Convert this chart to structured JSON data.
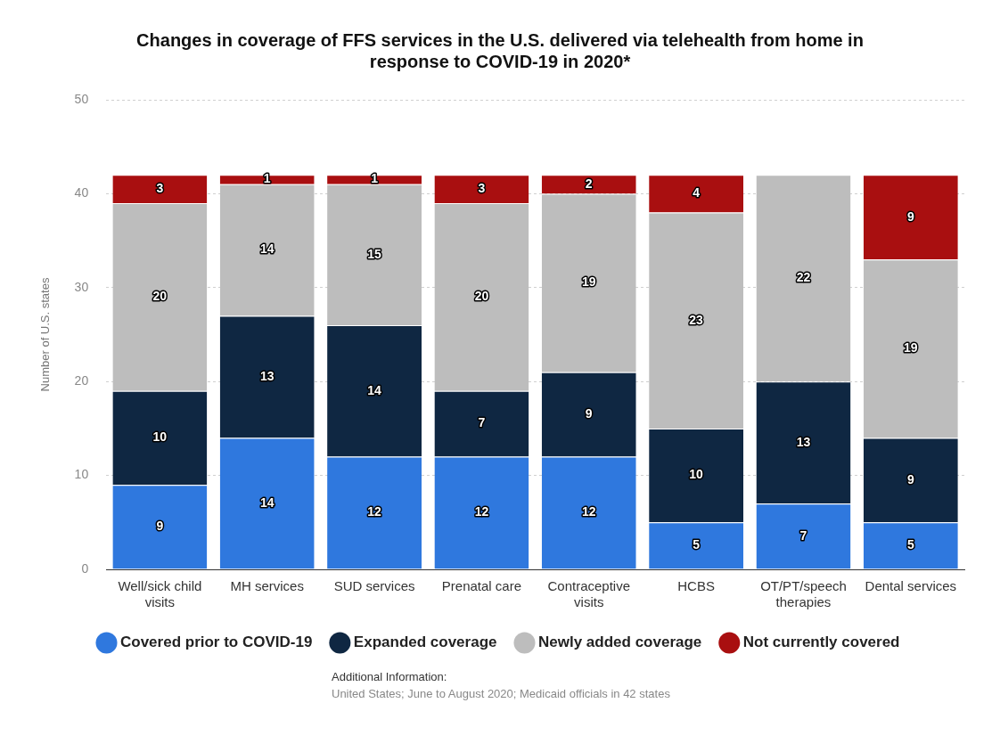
{
  "chart_data": {
    "type": "bar",
    "title": "Changes in coverage of FFS services in the U.S. delivered via telehealth from home in response to COVID-19 in 2020*",
    "ylabel": "Number of U.S. states",
    "categories": [
      "Well/sick child visits",
      "MH services",
      "SUD services",
      "Prenatal care",
      "Contraceptive visits",
      "HCBS",
      "OT/PT/speech therapies",
      "Dental services"
    ],
    "series": [
      {
        "name": "Covered prior to COVID-19",
        "color": "#2f78de",
        "values": [
          9,
          14,
          12,
          12,
          12,
          5,
          7,
          5
        ]
      },
      {
        "name": "Expanded coverage",
        "color": "#0f2742",
        "values": [
          10,
          13,
          14,
          7,
          9,
          10,
          13,
          9
        ]
      },
      {
        "name": "Newly added coverage",
        "color": "#bdbdbd",
        "values": [
          20,
          14,
          15,
          20,
          19,
          23,
          22,
          19
        ]
      },
      {
        "name": "Not currently covered",
        "color": "#a90f10",
        "values": [
          3,
          1,
          1,
          3,
          2,
          4,
          null,
          9
        ]
      }
    ],
    "stacked": true,
    "ylim": [
      0,
      50
    ],
    "yticks": [
      0,
      10,
      20,
      30,
      40,
      50
    ],
    "grid": "y",
    "legend": "bottom",
    "marker": "circle",
    "data_labels": true,
    "annotations": [
      "Additional Information:",
      "United States; June to August 2020; Medicaid officials in 42 states"
    ]
  }
}
